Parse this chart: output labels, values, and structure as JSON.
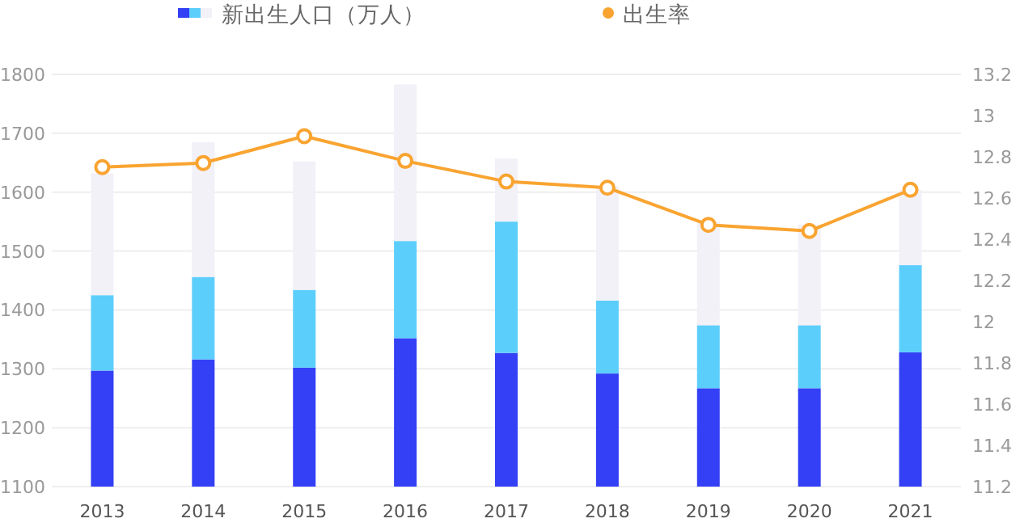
{
  "chart_data": {
    "type": "bar",
    "stacked": true,
    "categories": [
      "2013",
      "2014",
      "2015",
      "2016",
      "2017",
      "2018",
      "2019",
      "2020",
      "2021"
    ],
    "series": [
      {
        "color": "#3340f5",
        "values": [
          1297,
          1316,
          1302,
          1352,
          1327,
          1292,
          1267,
          1267,
          1328
        ]
      },
      {
        "color": "#5ccefc",
        "base": [
          1297,
          1316,
          1302,
          1352,
          1327,
          1292,
          1267,
          1267,
          1328
        ],
        "values": [
          128,
          140,
          132,
          165,
          223,
          124,
          107,
          107,
          148
        ]
      },
      {
        "name": "新出生人口（万人）",
        "color": "#f2f1f8",
        "base": [
          1425,
          1456,
          1434,
          1517,
          1550,
          1416,
          1374,
          1374,
          1476
        ],
        "values": [
          207,
          229,
          218,
          266,
          107,
          194,
          176,
          171,
          128
        ]
      },
      {
        "name": "出生率",
        "type": "line",
        "axis": "y2",
        "color": "#f9a431",
        "marker": "circle",
        "values": [
          12.75,
          12.77,
          12.9,
          12.78,
          12.68,
          12.65,
          12.47,
          12.44,
          12.64
        ]
      }
    ],
    "ylim": [
      1100,
      1800
    ],
    "yticks": [
      1100,
      1200,
      1300,
      1400,
      1500,
      1600,
      1700,
      1800
    ],
    "y2lim": [
      11.2,
      13.2
    ],
    "y2ticks": [
      11.2,
      11.4,
      11.6,
      11.8,
      12,
      12.2,
      12.4,
      12.6,
      12.8,
      13,
      13.2
    ],
    "grid": "y",
    "legend": "top"
  }
}
